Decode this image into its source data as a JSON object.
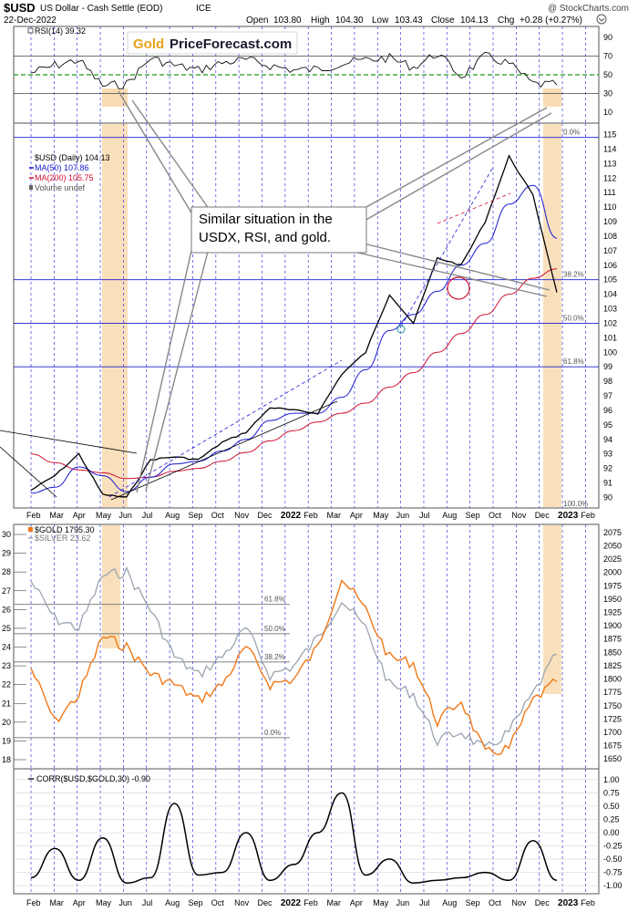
{
  "header": {
    "title_symbol": "$USD",
    "title_name": "US Dollar - Cash Settle (EOD)",
    "title_exchange": "ICE",
    "date": "22-Dec-2022",
    "watermark": "@ StockCharts.com",
    "open_label": "Open",
    "open": "103.80",
    "high_label": "High",
    "high": "104.30",
    "low_label": "Low",
    "low": "103.43",
    "close_label": "Close",
    "close": "104.13",
    "chg_label": "Chg",
    "chg": "+0.28 (+0.27%)"
  },
  "logo": {
    "part1": "Gold",
    "part2": "PriceForecast.com"
  },
  "annotation": {
    "line1": "Similar situation in the",
    "line2": "USDX, RSI, and gold."
  },
  "colors": {
    "price": "#000000",
    "ma50": "#1a1ad0",
    "ma200": "#d01030",
    "gold": "#f07818",
    "silver": "#9aa4b0",
    "highlight": "#f7d6a6",
    "rsi_mid": "#1a9a1a",
    "hline": "#1a1ad0"
  },
  "chart_data": [
    {
      "type": "line",
      "panel": "rsi",
      "legend": "RSI(14) 39.32",
      "yticks": [
        10,
        30,
        50,
        70,
        90
      ],
      "ylim": [
        0,
        100
      ],
      "reference_lines": [
        30,
        50,
        70
      ],
      "x": [
        "2021-02",
        "2021-03",
        "2021-04",
        "2021-05",
        "2021-06",
        "2021-07",
        "2021-08",
        "2021-09",
        "2021-10",
        "2021-11",
        "2021-12",
        "2022-01",
        "2022-02",
        "2022-03",
        "2022-04",
        "2022-05",
        "2022-06",
        "2022-07",
        "2022-08",
        "2022-09",
        "2022-10",
        "2022-11",
        "2022-12"
      ],
      "values": [
        52,
        60,
        66,
        38,
        40,
        68,
        60,
        55,
        63,
        66,
        60,
        55,
        56,
        62,
        66,
        68,
        58,
        73,
        48,
        70,
        62,
        40,
        39
      ]
    },
    {
      "type": "line",
      "panel": "usd",
      "legend": [
        "$USD (Daily) 104.13",
        "MA(50) 107.86",
        "MA(200) 105.75",
        "Volume undef"
      ],
      "yticks": [
        90,
        91,
        92,
        93,
        94,
        95,
        96,
        97,
        98,
        99,
        100,
        101,
        102,
        103,
        104,
        105,
        106,
        107,
        108,
        109,
        110,
        111,
        112,
        113,
        114,
        115
      ],
      "ylim": [
        89.4,
        115.6
      ],
      "fib_levels": [
        {
          "label": "0.0%",
          "value": 114.8
        },
        {
          "label": "38.2%",
          "value": 105.0
        },
        {
          "label": "50.0%",
          "value": 102.0
        },
        {
          "label": "61.8%",
          "value": 99.0
        },
        {
          "label": "100.0%",
          "value": 89.3
        }
      ],
      "xlabels": [
        "Feb",
        "Mar",
        "Apr",
        "May",
        "Jun",
        "Jul",
        "Aug",
        "Sep",
        "Oct",
        "Nov",
        "Dec",
        "2022",
        "Feb",
        "Mar",
        "Apr",
        "May",
        "Jun",
        "Jul",
        "Aug",
        "Sep",
        "Oct",
        "Nov",
        "Dec",
        "2023",
        "Feb"
      ],
      "x": [
        "2021-02",
        "2021-03",
        "2021-04",
        "2021-05",
        "2021-06",
        "2021-07",
        "2021-08",
        "2021-09",
        "2021-10",
        "2021-11",
        "2021-12",
        "2022-01",
        "2022-02",
        "2022-03",
        "2022-04",
        "2022-05",
        "2022-06",
        "2022-07",
        "2022-08",
        "2022-09",
        "2022-10",
        "2022-11",
        "2022-12"
      ],
      "series": [
        {
          "name": "$USD",
          "values": [
            90.5,
            91.5,
            93.0,
            90.2,
            90.0,
            92.6,
            92.8,
            92.6,
            93.8,
            94.5,
            96.2,
            96.0,
            95.8,
            98.5,
            100.0,
            104.0,
            102.0,
            106.5,
            106.0,
            109.0,
            113.5,
            110.8,
            104.13
          ]
        },
        {
          "name": "MA(50)",
          "values": [
            90.3,
            90.7,
            92.1,
            91.5,
            90.4,
            91.4,
            92.3,
            92.5,
            93.2,
            94.0,
            95.3,
            95.8,
            95.8,
            96.9,
            98.8,
            101.5,
            102.6,
            104.2,
            106.0,
            107.5,
            110.2,
            111.5,
            107.86
          ]
        },
        {
          "name": "MA(200)",
          "values": [
            93.0,
            92.4,
            91.9,
            91.7,
            91.3,
            91.4,
            91.8,
            92.0,
            92.5,
            93.1,
            93.9,
            94.6,
            95.2,
            95.8,
            96.5,
            97.6,
            98.6,
            100.0,
            101.3,
            102.6,
            104.0,
            105.1,
            105.75
          ]
        }
      ]
    },
    {
      "type": "line",
      "panel": "gold",
      "legend": [
        "$GOLD 1795.30",
        "$SILVER 23.62"
      ],
      "yticks_left": [
        18,
        19,
        20,
        21,
        22,
        23,
        24,
        25,
        26,
        27,
        28,
        29,
        30
      ],
      "yticks_right": [
        1650,
        1675,
        1700,
        1725,
        1750,
        1775,
        1800,
        1825,
        1850,
        1875,
        1900,
        1925,
        1950,
        1975,
        2000,
        2025,
        2050,
        2075
      ],
      "ylim_right": [
        1635,
        2085
      ],
      "fib_levels": [
        {
          "label": "61.8%",
          "value": 1940
        },
        {
          "label": "50.0%",
          "value": 1885
        },
        {
          "label": "38.2%",
          "value": 1832
        },
        {
          "label": "0.0%",
          "value": 1690
        }
      ],
      "x": [
        "2021-02",
        "2021-03",
        "2021-04",
        "2021-05",
        "2021-06",
        "2021-07",
        "2021-08",
        "2021-09",
        "2021-10",
        "2021-11",
        "2021-12",
        "2022-01",
        "2022-02",
        "2022-03",
        "2022-04",
        "2022-05",
        "2022-06",
        "2022-07",
        "2022-08",
        "2022-09",
        "2022-10",
        "2022-11",
        "2022-12"
      ],
      "series": [
        {
          "name": "$GOLD",
          "values": [
            1820,
            1720,
            1770,
            1880,
            1860,
            1810,
            1790,
            1760,
            1790,
            1860,
            1790,
            1800,
            1860,
            1990,
            1930,
            1840,
            1830,
            1720,
            1760,
            1660,
            1670,
            1760,
            1795.3
          ]
        },
        {
          "name": "$SILVER",
          "values": [
            27.5,
            25.5,
            25.0,
            27.8,
            28.0,
            26.0,
            23.5,
            22.5,
            23.5,
            25.0,
            22.5,
            23.0,
            24.5,
            26.5,
            25.0,
            22.0,
            21.5,
            19.0,
            19.5,
            18.5,
            19.5,
            21.5,
            23.62
          ]
        }
      ]
    },
    {
      "type": "line",
      "panel": "corr",
      "legend": "CORR($USD,$GOLD,30) -0.90",
      "yticks": [
        -1.0,
        -0.75,
        -0.5,
        -0.25,
        0.0,
        0.25,
        0.5,
        0.75,
        1.0
      ],
      "yticklabels": [
        "-1.00",
        "-0.75",
        "-0.50",
        "-0.25",
        "0.00",
        "0.25",
        "0.50",
        "0.75",
        "1.00"
      ],
      "ylim": [
        -1.05,
        1.05
      ],
      "x": [
        "2021-02",
        "2021-03",
        "2021-04",
        "2021-05",
        "2021-06",
        "2021-07",
        "2021-08",
        "2021-09",
        "2021-10",
        "2021-11",
        "2021-12",
        "2022-01",
        "2022-02",
        "2022-03",
        "2022-04",
        "2022-05",
        "2022-06",
        "2022-07",
        "2022-08",
        "2022-09",
        "2022-10",
        "2022-11",
        "2022-12"
      ],
      "values": [
        -0.85,
        -0.3,
        -0.9,
        -0.1,
        -0.95,
        -0.85,
        0.55,
        -0.8,
        -0.75,
        0.0,
        -0.9,
        -0.6,
        0.0,
        0.75,
        -0.8,
        -0.5,
        -0.95,
        -0.9,
        -0.85,
        -0.75,
        -0.9,
        -0.15,
        -0.9
      ]
    }
  ]
}
